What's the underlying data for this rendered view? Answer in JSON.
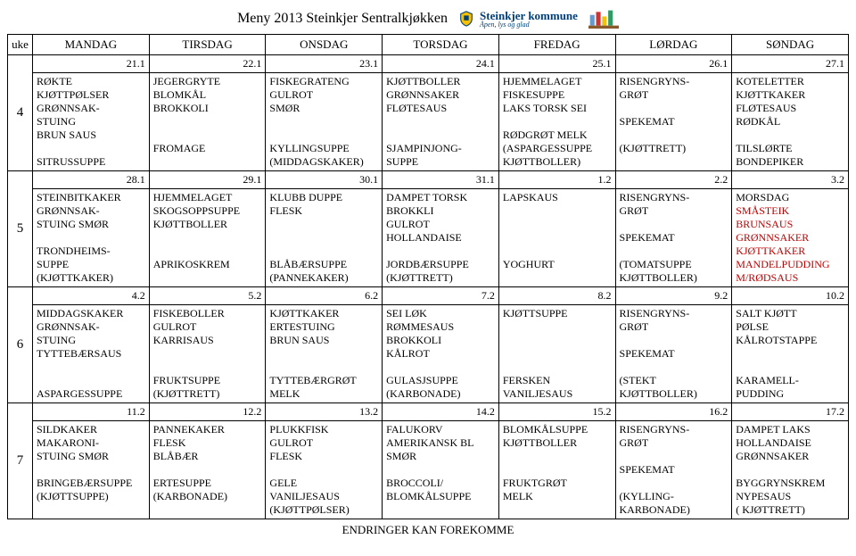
{
  "title": "Meny 2013 Steinkjer Sentralkjøkken",
  "brand_text": "Steinkjer kommune",
  "brand_sub": "Åpen, lys og glad",
  "footer": "ENDRINGER KAN FOREKOMME",
  "colors": {
    "red": "#c00000",
    "brand": "#003f7a"
  },
  "headers": {
    "uke": "uke",
    "days": [
      "MANDAG",
      "TIRSDAG",
      "ONSDAG",
      "TORSDAG",
      "FREDAG",
      "LØRDAG",
      "SØNDAG"
    ]
  },
  "weeks": [
    {
      "num": "4",
      "days": [
        {
          "date": "21.1",
          "lines": [
            [
              "RØKTE"
            ],
            [
              "KJØTTPØLSER"
            ],
            [
              "GRØNNSAK-"
            ],
            [
              "STUING"
            ],
            [
              "BRUN SAUS"
            ],
            [
              ""
            ],
            [
              "SITRUSSUPPE"
            ]
          ]
        },
        {
          "date": "22.1",
          "lines": [
            [
              "JEGERGRYTE"
            ],
            [
              "BLOMKÅL"
            ],
            [
              "BROKKOLI"
            ],
            [
              ""
            ],
            [
              ""
            ],
            [
              "FROMAGE"
            ]
          ]
        },
        {
          "date": "23.1",
          "lines": [
            [
              "FISKEGRATENG"
            ],
            [
              "GULROT"
            ],
            [
              "SMØR"
            ],
            [
              ""
            ],
            [
              ""
            ],
            [
              "KYLLINGSUPPE"
            ],
            [
              "(MIDDAGSKAKER)"
            ]
          ]
        },
        {
          "date": "24.1",
          "lines": [
            [
              "KJØTTBOLLER"
            ],
            [
              "GRØNNSAKER"
            ],
            [
              "FLØTESAUS"
            ],
            [
              ""
            ],
            [
              ""
            ],
            [
              "SJAMPINJONG-"
            ],
            [
              "SUPPE"
            ]
          ]
        },
        {
          "date": "25.1",
          "lines": [
            [
              "HJEMMELAGET"
            ],
            [
              "FISKESUPPE"
            ],
            [
              "LAKS TORSK SEI"
            ],
            [
              ""
            ],
            [
              "RØDGRØT MELK"
            ],
            [
              "(ASPARGESSUPPE"
            ],
            [
              "KJØTTBOLLER)"
            ]
          ]
        },
        {
          "date": "26.1",
          "lines": [
            [
              "RISENGRYNS-"
            ],
            [
              "GRØT"
            ],
            [
              ""
            ],
            [
              "SPEKEMAT"
            ],
            [
              ""
            ],
            [
              "(KJØTTRETT)"
            ]
          ]
        },
        {
          "date": "27.1",
          "lines": [
            [
              "KOTELETTER"
            ],
            [
              "KJØTTKAKER"
            ],
            [
              "FLØTESAUS"
            ],
            [
              "RØDKÅL"
            ],
            [
              ""
            ],
            [
              "TILSLØRTE"
            ],
            [
              "BONDEPIKER"
            ]
          ]
        }
      ]
    },
    {
      "num": "5",
      "days": [
        {
          "date": "28.1",
          "lines": [
            [
              "STEINBITKAKER"
            ],
            [
              "GRØNNSAK-"
            ],
            [
              "STUING SMØR"
            ],
            [
              ""
            ],
            [
              "TRONDHEIMS-"
            ],
            [
              "SUPPE"
            ],
            [
              "(KJØTTKAKER)"
            ]
          ]
        },
        {
          "date": "29.1",
          "lines": [
            [
              "HJEMMELAGET"
            ],
            [
              "SKOGSOPPSUPPE"
            ],
            [
              "KJØTTBOLLER"
            ],
            [
              ""
            ],
            [
              ""
            ],
            [
              "APRIKOSKREM"
            ]
          ]
        },
        {
          "date": "30.1",
          "lines": [
            [
              "KLUBB DUPPE"
            ],
            [
              "FLESK"
            ],
            [
              ""
            ],
            [
              ""
            ],
            [
              ""
            ],
            [
              "BLÅBÆRSUPPE"
            ],
            [
              "(PANNEKAKER)"
            ]
          ]
        },
        {
          "date": "31.1",
          "lines": [
            [
              "DAMPET TORSK"
            ],
            [
              "BROKKLI"
            ],
            [
              "GULROT"
            ],
            [
              "HOLLANDAISE"
            ],
            [
              ""
            ],
            [
              "JORDBÆRSUPPE"
            ],
            [
              "(KJØTTRETT)"
            ]
          ]
        },
        {
          "date": "1.2",
          "lines": [
            [
              "LAPSKAUS"
            ],
            [
              ""
            ],
            [
              ""
            ],
            [
              ""
            ],
            [
              ""
            ],
            [
              "YOGHURT"
            ]
          ]
        },
        {
          "date": "2.2",
          "lines": [
            [
              "RISENGRYNS-"
            ],
            [
              "GRØT"
            ],
            [
              ""
            ],
            [
              "SPEKEMAT"
            ],
            [
              ""
            ],
            [
              "(TOMATSUPPE"
            ],
            [
              "KJØTTBOLLER)"
            ]
          ]
        },
        {
          "date": "3.2",
          "lines": [
            [
              "MORSDAG"
            ],
            [
              "SMÅSTEIK",
              "red"
            ],
            [
              "BRUNSAUS",
              "red"
            ],
            [
              "GRØNNSAKER",
              "red"
            ],
            [
              "KJØTTKAKER",
              "red"
            ],
            [
              "MANDELPUDDING",
              "red"
            ],
            [
              "M/RØDSAUS",
              "red"
            ]
          ]
        }
      ]
    },
    {
      "num": "6",
      "days": [
        {
          "date": "4.2",
          "lines": [
            [
              "MIDDAGSKAKER"
            ],
            [
              "GRØNNSAK-"
            ],
            [
              "STUING"
            ],
            [
              "TYTTEBÆRSAUS"
            ],
            [
              ""
            ],
            [
              ""
            ],
            [
              "ASPARGESSUPPE"
            ]
          ]
        },
        {
          "date": "5.2",
          "lines": [
            [
              "FISKEBOLLER"
            ],
            [
              "GULROT"
            ],
            [
              "KARRISAUS"
            ],
            [
              ""
            ],
            [
              ""
            ],
            [
              "FRUKTSUPPE"
            ],
            [
              "(KJØTTRETT)"
            ]
          ]
        },
        {
          "date": "6.2",
          "lines": [
            [
              "KJØTTKAKER"
            ],
            [
              "ERTESTUING"
            ],
            [
              "BRUN SAUS"
            ],
            [
              ""
            ],
            [
              ""
            ],
            [
              "TYTTEBÆRGRØT"
            ],
            [
              "MELK"
            ]
          ]
        },
        {
          "date": "7.2",
          "lines": [
            [
              "SEI LØK"
            ],
            [
              "RØMMESAUS"
            ],
            [
              "BROKKOLI"
            ],
            [
              "KÅLROT"
            ],
            [
              ""
            ],
            [
              "GULASJSUPPE"
            ],
            [
              "(KARBONADE)"
            ]
          ]
        },
        {
          "date": "8.2",
          "lines": [
            [
              "KJØTTSUPPE"
            ],
            [
              ""
            ],
            [
              ""
            ],
            [
              ""
            ],
            [
              ""
            ],
            [
              "FERSKEN"
            ],
            [
              "VANILJESAUS"
            ]
          ]
        },
        {
          "date": "9.2",
          "lines": [
            [
              "RISENGRYNS-"
            ],
            [
              "GRØT"
            ],
            [
              ""
            ],
            [
              "SPEKEMAT"
            ],
            [
              ""
            ],
            [
              "(STEKT"
            ],
            [
              "KJØTTBOLLER)"
            ]
          ]
        },
        {
          "date": "10.2",
          "lines": [
            [
              "SALT KJØTT"
            ],
            [
              "PØLSE"
            ],
            [
              "KÅLROTSTAPPE"
            ],
            [
              ""
            ],
            [
              ""
            ],
            [
              "KARAMELL-"
            ],
            [
              "PUDDING"
            ]
          ]
        }
      ]
    },
    {
      "num": "7",
      "days": [
        {
          "date": "11.2",
          "lines": [
            [
              "SILDKAKER"
            ],
            [
              "MAKARONI-"
            ],
            [
              "STUING SMØR"
            ],
            [
              ""
            ],
            [
              "BRINGEBÆRSUPPE"
            ],
            [
              "(KJØTTSUPPE)"
            ]
          ]
        },
        {
          "date": "12.2",
          "lines": [
            [
              "PANNEKAKER"
            ],
            [
              "FLESK"
            ],
            [
              "BLÅBÆR"
            ],
            [
              ""
            ],
            [
              "ERTESUPPE"
            ],
            [
              "(KARBONADE)"
            ]
          ]
        },
        {
          "date": "13.2",
          "lines": [
            [
              "PLUKKFISK"
            ],
            [
              "GULROT"
            ],
            [
              "FLESK"
            ],
            [
              ""
            ],
            [
              "GELE"
            ],
            [
              "VANILJESAUS"
            ],
            [
              "(KJØTTPØLSER)"
            ]
          ]
        },
        {
          "date": "14.2",
          "lines": [
            [
              "FALUKORV"
            ],
            [
              "AMERIKANSK BL"
            ],
            [
              "SMØR"
            ],
            [
              ""
            ],
            [
              "BROCCOLI/"
            ],
            [
              "BLOMKÅLSUPPE"
            ]
          ]
        },
        {
          "date": "15.2",
          "lines": [
            [
              "BLOMKÅLSUPPE"
            ],
            [
              "KJØTTBOLLER"
            ],
            [
              ""
            ],
            [
              ""
            ],
            [
              "FRUKTGRØT"
            ],
            [
              "MELK"
            ]
          ]
        },
        {
          "date": "16.2",
          "lines": [
            [
              "RISENGRYNS-"
            ],
            [
              "GRØT"
            ],
            [
              ""
            ],
            [
              "SPEKEMAT"
            ],
            [
              ""
            ],
            [
              "(KYLLING-"
            ],
            [
              "KARBONADE)"
            ]
          ]
        },
        {
          "date": "17.2",
          "lines": [
            [
              "DAMPET LAKS"
            ],
            [
              "HOLLANDAISE"
            ],
            [
              "GRØNNSAKER"
            ],
            [
              ""
            ],
            [
              "BYGGRYNSKREM"
            ],
            [
              "NYPESAUS"
            ],
            [
              "( KJØTTRETT)"
            ]
          ]
        }
      ]
    }
  ]
}
